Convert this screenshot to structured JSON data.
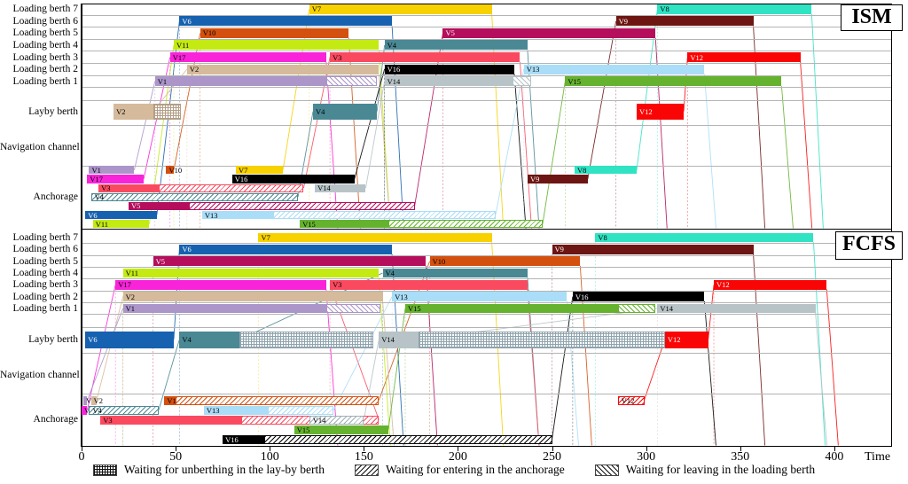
{
  "legend": {
    "items": [
      {
        "pattern": "crosshatch",
        "label": "Waiting for unberthing in the lay-by berth"
      },
      {
        "pattern": "diag-back",
        "label": "Waiting for entering in the anchorage"
      },
      {
        "pattern": "diag-fwd",
        "label": "Waiting for leaving in the loading berth"
      }
    ]
  },
  "chart_data": {
    "type": "gantt",
    "time_axis": {
      "label": "Time",
      "ticks": [
        0,
        50,
        100,
        150,
        200,
        250,
        300,
        350,
        400
      ],
      "min": 0,
      "max": 430
    },
    "row_labels": [
      "Loading berth 7",
      "Loading berth 6",
      "Loading berth 5",
      "Loading berth 4",
      "Loading berth 3",
      "Loading berth 2",
      "Loading berth 1",
      "Layby berth",
      "Navigation channel",
      "Anchorage"
    ],
    "vessel_colors": {
      "V1": "#ab95c9",
      "V2": "#d5ba9b",
      "V3": "#fa4a60",
      "V4": "#4a8894",
      "V5": "#b40e5c",
      "V6": "#1661b0",
      "V7": "#f7d100",
      "V8": "#30e3c2",
      "V9": "#6d1512",
      "V10": "#d4500e",
      "V11": "#c3ea12",
      "V12": "#fa0505",
      "V13": "#a9ddf8",
      "V14": "#b7c3c7",
      "V15": "#65b22e",
      "V16": "#000000",
      "V17": "#f923da"
    },
    "white_label_vessels": [
      "V5",
      "V6",
      "V9",
      "V12",
      "V16"
    ],
    "panels": [
      {
        "name": "ISM",
        "lb": [
          [
            {
              "v": "V7",
              "s": 121,
              "e": 218
            },
            {
              "v": "V8",
              "s": 306,
              "e": 388
            }
          ],
          [
            {
              "v": "V6",
              "s": 52,
              "e": 165
            },
            {
              "v": "V9",
              "s": 284,
              "e": 357
            }
          ],
          [
            {
              "v": "V10",
              "s": 63,
              "e": 142
            },
            {
              "v": "V5",
              "s": 192,
              "e": 305
            }
          ],
          [
            {
              "v": "V11",
              "s": 49,
              "e": 158
            },
            {
              "v": "V4",
              "s": 161,
              "e": 237
            }
          ],
          [
            {
              "v": "V17",
              "s": 47,
              "e": 130
            },
            {
              "v": "V3",
              "s": 132,
              "e": 233
            },
            {
              "v": "V12",
              "s": 322,
              "e": 382
            }
          ],
          [
            {
              "v": "V2",
              "s": 56,
              "e": 158
            },
            {
              "v": "V16",
              "s": 161,
              "e": 230
            },
            {
              "v": "V13",
              "s": 235,
              "e": 331
            }
          ],
          [
            {
              "v": "V1",
              "s": 39,
              "e": 130
            },
            {
              "v": "V1",
              "s": 130,
              "e": 157,
              "h": "f"
            },
            {
              "v": "V14",
              "s": 161,
              "e": 229
            },
            {
              "v": "V14",
              "s": 229,
              "e": 239,
              "h": "f"
            },
            {
              "v": "V15",
              "s": 257,
              "e": 372
            }
          ]
        ],
        "layby": [
          {
            "v": "V2",
            "s": 17,
            "e": 38
          },
          {
            "s": 38,
            "e": 53,
            "h": "c",
            "c": "#b39e86"
          },
          {
            "v": "V4",
            "s": 123,
            "e": 157
          },
          {
            "v": "V12",
            "s": 295,
            "e": 320
          }
        ],
        "anch": [
          [
            {
              "v": "V1",
              "s": 4,
              "e": 28
            },
            {
              "v": "V10",
              "s": 45,
              "e": 49
            },
            {
              "v": "V7",
              "s": 82,
              "e": 107
            },
            {
              "v": "V8",
              "s": 262,
              "e": 295
            }
          ],
          [
            {
              "v": "V17",
              "s": 3,
              "e": 33
            },
            {
              "v": "V16",
              "s": 80,
              "e": 145
            },
            {
              "v": "V9",
              "s": 237,
              "e": 269
            }
          ],
          [
            {
              "v": "V3",
              "s": 9,
              "e": 41
            },
            {
              "v": "V3",
              "s": 41,
              "e": 118,
              "h": "b"
            },
            {
              "v": "V14",
              "s": 124,
              "e": 151
            }
          ],
          [
            {
              "v": "V4",
              "s": 5,
              "e": 115,
              "h": "b",
              "lab": 1
            }
          ],
          [
            {
              "v": "V5",
              "s": 25,
              "e": 57
            },
            {
              "v": "V5",
              "s": 57,
              "e": 177,
              "h": "b"
            }
          ],
          [
            {
              "v": "V6",
              "s": 2,
              "e": 40
            },
            {
              "v": "V13",
              "s": 64,
              "e": 102
            },
            {
              "v": "V13",
              "s": 102,
              "e": 220,
              "h": "b"
            }
          ],
          [
            {
              "v": "V11",
              "s": 6,
              "e": 36
            },
            {
              "v": "V15",
              "s": 116,
              "e": 163
            },
            {
              "v": "V15",
              "s": 163,
              "e": 245,
              "h": "b"
            }
          ]
        ]
      },
      {
        "name": "FCFS",
        "lb": [
          [
            {
              "v": "V7",
              "s": 94,
              "e": 218
            },
            {
              "v": "V8",
              "s": 273,
              "e": 389
            }
          ],
          [
            {
              "v": "V6",
              "s": 52,
              "e": 165
            },
            {
              "v": "V9",
              "s": 250,
              "e": 357
            }
          ],
          [
            {
              "v": "V5",
              "s": 38,
              "e": 183
            },
            {
              "v": "V10",
              "s": 185,
              "e": 265
            }
          ],
          [
            {
              "v": "V11",
              "s": 22,
              "e": 158
            },
            {
              "v": "V4",
              "s": 160,
              "e": 237
            }
          ],
          [
            {
              "v": "V17",
              "s": 18,
              "e": 130
            },
            {
              "v": "V3",
              "s": 132,
              "e": 237
            },
            {
              "v": "V12",
              "s": 336,
              "e": 396
            }
          ],
          [
            {
              "v": "V2",
              "s": 22,
              "e": 160
            },
            {
              "v": "V13",
              "s": 165,
              "e": 258
            },
            {
              "v": "V16",
              "s": 261,
              "e": 331
            }
          ],
          [
            {
              "v": "V1",
              "s": 22,
              "e": 130
            },
            {
              "v": "V1",
              "s": 130,
              "e": 159,
              "h": "f"
            },
            {
              "v": "V15",
              "s": 172,
              "e": 285
            },
            {
              "v": "V15",
              "s": 285,
              "e": 305,
              "h": "f"
            },
            {
              "v": "V14",
              "s": 306,
              "e": 390
            }
          ]
        ],
        "layby": [
          {
            "v": "V6",
            "s": 2,
            "e": 49
          },
          {
            "v": "V4",
            "s": 52,
            "e": 84
          },
          {
            "s": 84,
            "e": 155,
            "h": "c",
            "c": "#8fa3ad"
          },
          {
            "v": "V14",
            "s": 158,
            "e": 179
          },
          {
            "s": 179,
            "e": 310,
            "h": "c",
            "c": "#8fa3ad"
          },
          {
            "v": "V12",
            "s": 310,
            "e": 333
          }
        ],
        "anch": [
          [
            {
              "v": "V1",
              "s": 1,
              "e": 3
            },
            {
              "v": "V2",
              "s": 5,
              "e": 8
            },
            {
              "v": "V10",
              "s": 44,
              "e": 50
            },
            {
              "v": "V10",
              "s": 50,
              "e": 158,
              "h": "b"
            },
            {
              "v": "V12",
              "s": 285,
              "e": 299,
              "h": "b",
              "lab": 1
            }
          ],
          [
            {
              "v": "V17",
              "s": 0,
              "e": 3
            },
            {
              "v": "V4",
              "s": 4,
              "e": 41,
              "h": "b",
              "lab": 1
            },
            {
              "v": "V13",
              "s": 65,
              "e": 99
            },
            {
              "v": "V13",
              "s": 99,
              "e": 134,
              "h": "b"
            }
          ],
          [
            {
              "v": "V3",
              "s": 10,
              "e": 85
            },
            {
              "v": "V3",
              "s": 85,
              "e": 158,
              "h": "b"
            },
            {
              "v": "V14",
              "s": 121,
              "e": 150,
              "h": "b",
              "c": "#9fb0b5",
              "lab": 1
            }
          ],
          [
            {
              "v": "V15",
              "s": 113,
              "e": 163
            }
          ],
          [
            {
              "v": "V16",
              "s": 75,
              "e": 97
            },
            {
              "v": "V16",
              "s": 97,
              "e": 250,
              "h": "b"
            }
          ]
        ]
      }
    ]
  }
}
